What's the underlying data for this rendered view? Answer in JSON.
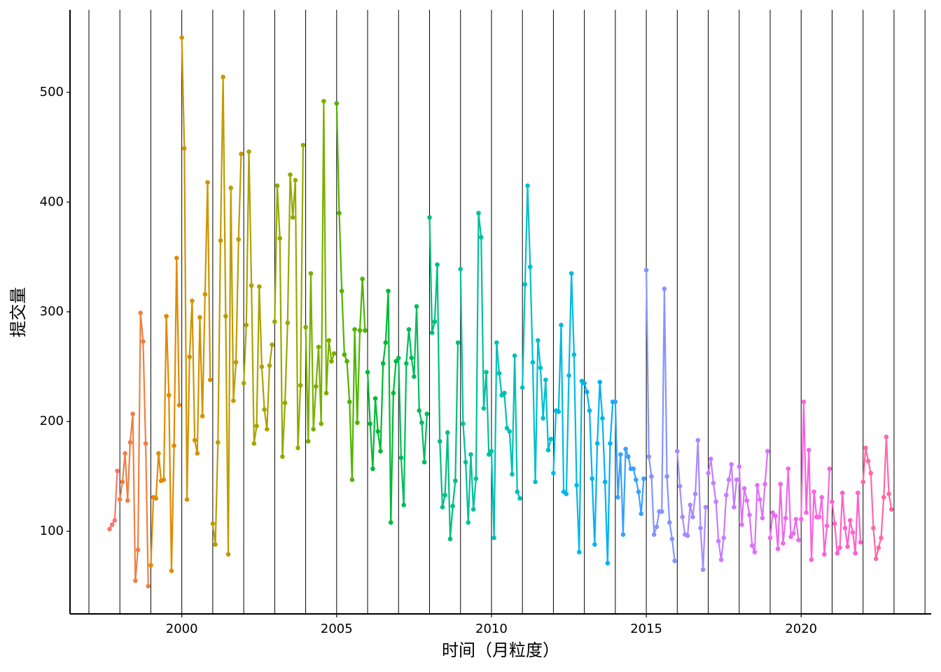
{
  "chart_data": {
    "type": "line",
    "x_label": "时间（月粒度）",
    "y_label": "提交量",
    "xlim": [
      1996.39,
      2024.2
    ],
    "ylim": [
      24.7,
      575.3
    ],
    "xticks": [
      2000,
      2005,
      2010,
      2015,
      2020
    ],
    "yticks": [
      100,
      200,
      300,
      400,
      500
    ],
    "vlines": [
      1997,
      1998,
      1999,
      2000,
      2001,
      2002,
      2003,
      2004,
      2005,
      2006,
      2007,
      2008,
      2009,
      2010,
      2011,
      2012,
      2013,
      2014,
      2015,
      2016,
      2017,
      2018,
      2019,
      2020,
      2021,
      2022,
      2023,
      2024
    ],
    "series": [
      {
        "color": "#F8766D",
        "x": [
          1997.667,
          1997.75,
          1997.833,
          1997.917
        ],
        "values": [
          102,
          106,
          110,
          155
        ]
      },
      {
        "color": "#EE8044",
        "x": [
          1998,
          1998.083,
          1998.167,
          1998.25,
          1998.333,
          1998.417,
          1998.5,
          1998.583,
          1998.667,
          1998.75,
          1998.833,
          1998.917
        ],
        "values": [
          129,
          145,
          171,
          128,
          181,
          207,
          55,
          83,
          299,
          273,
          180,
          50
        ]
      },
      {
        "color": "#E18A00",
        "x": [
          1999,
          1999.083,
          1999.167,
          1999.25,
          1999.333,
          1999.417,
          1999.5,
          1999.583,
          1999.667,
          1999.75,
          1999.833,
          1999.917
        ],
        "values": [
          69,
          131,
          130,
          171,
          146,
          147,
          296,
          224,
          64,
          178,
          349,
          215
        ]
      },
      {
        "color": "#D29300",
        "x": [
          2000,
          2000.083,
          2000.167,
          2000.25,
          2000.333,
          2000.417,
          2000.5,
          2000.583,
          2000.667,
          2000.75,
          2000.833,
          2000.917
        ],
        "values": [
          550,
          449,
          129,
          259,
          310,
          183,
          171,
          295,
          205,
          316,
          418,
          238
        ]
      },
      {
        "color": "#C09B00",
        "x": [
          2001,
          2001.083,
          2001.167,
          2001.25,
          2001.333,
          2001.417,
          2001.5,
          2001.583,
          2001.667,
          2001.75,
          2001.833,
          2001.917
        ],
        "values": [
          107,
          88,
          181,
          365,
          514,
          296,
          79,
          413,
          219,
          254,
          366,
          444
        ]
      },
      {
        "color": "#ABA300",
        "x": [
          2002,
          2002.083,
          2002.167,
          2002.25,
          2002.333,
          2002.417,
          2002.5,
          2002.583,
          2002.667,
          2002.75,
          2002.833,
          2002.917
        ],
        "values": [
          235,
          288,
          446,
          324,
          180,
          196,
          323,
          250,
          211,
          193,
          251,
          270
        ]
      },
      {
        "color": "#94AA00",
        "x": [
          2003,
          2003.083,
          2003.167,
          2003.25,
          2003.333,
          2003.417,
          2003.5,
          2003.583,
          2003.667,
          2003.75,
          2003.833,
          2003.917
        ],
        "values": [
          291,
          415,
          367,
          168,
          217,
          290,
          425,
          386,
          420,
          176,
          233,
          452
        ]
      },
      {
        "color": "#78B000",
        "x": [
          2004,
          2004.083,
          2004.167,
          2004.25,
          2004.333,
          2004.417,
          2004.5,
          2004.583,
          2004.667,
          2004.75,
          2004.833,
          2004.917
        ],
        "values": [
          286,
          182,
          335,
          193,
          232,
          268,
          198,
          492,
          226,
          274,
          255,
          262
        ]
      },
      {
        "color": "#4EB400",
        "x": [
          2005,
          2005.083,
          2005.167,
          2005.25,
          2005.333,
          2005.417,
          2005.5,
          2005.583,
          2005.667,
          2005.75,
          2005.833,
          2005.917
        ],
        "values": [
          490,
          390,
          319,
          261,
          255,
          218,
          147,
          284,
          199,
          283,
          330,
          283
        ]
      },
      {
        "color": "#00B935",
        "x": [
          2006,
          2006.083,
          2006.167,
          2006.25,
          2006.333,
          2006.417,
          2006.5,
          2006.583,
          2006.667,
          2006.75,
          2006.833,
          2006.917
        ],
        "values": [
          245,
          198,
          157,
          221,
          191,
          173,
          253,
          272,
          319,
          108,
          226,
          255
        ]
      },
      {
        "color": "#00BC5A",
        "x": [
          2007,
          2007.083,
          2007.167,
          2007.25,
          2007.333,
          2007.417,
          2007.5,
          2007.583,
          2007.667,
          2007.75,
          2007.833,
          2007.917
        ],
        "values": [
          258,
          167,
          124,
          253,
          284,
          258,
          241,
          305,
          210,
          199,
          163,
          207
        ]
      },
      {
        "color": "#00BE7D",
        "x": [
          2008,
          2008.083,
          2008.167,
          2008.25,
          2008.333,
          2008.417,
          2008.5,
          2008.583,
          2008.667,
          2008.75,
          2008.833,
          2008.917
        ],
        "values": [
          386,
          281,
          291,
          343,
          182,
          122,
          133,
          190,
          93,
          123,
          146,
          272
        ]
      },
      {
        "color": "#00C09B",
        "x": [
          2009,
          2009.083,
          2009.167,
          2009.25,
          2009.333,
          2009.417,
          2009.5,
          2009.583,
          2009.667,
          2009.75,
          2009.833,
          2009.917
        ],
        "values": [
          339,
          198,
          163,
          108,
          170,
          120,
          148,
          390,
          368,
          212,
          245,
          170
        ]
      },
      {
        "color": "#00C0B5",
        "x": [
          2010,
          2010.083,
          2010.167,
          2010.25,
          2010.333,
          2010.417,
          2010.5,
          2010.583,
          2010.667,
          2010.75,
          2010.833,
          2010.917
        ],
        "values": [
          173,
          94,
          272,
          244,
          224,
          226,
          194,
          191,
          152,
          260,
          136,
          130
        ]
      },
      {
        "color": "#00BECD",
        "x": [
          2011,
          2011.083,
          2011.167,
          2011.25,
          2011.333,
          2011.417,
          2011.5,
          2011.583,
          2011.667,
          2011.75,
          2011.833,
          2011.917
        ],
        "values": [
          231,
          325,
          415,
          341,
          254,
          145,
          274,
          249,
          203,
          238,
          174,
          184
        ]
      },
      {
        "color": "#00BAE1",
        "x": [
          2012,
          2012.083,
          2012.167,
          2012.25,
          2012.333,
          2012.417,
          2012.5,
          2012.583,
          2012.667,
          2012.75,
          2012.833,
          2012.917
        ],
        "values": [
          153,
          210,
          209,
          288,
          136,
          134,
          242,
          335,
          261,
          142,
          81,
          237
        ]
      },
      {
        "color": "#00B2F1",
        "x": [
          2013,
          2013.083,
          2013.167,
          2013.25,
          2013.333,
          2013.417,
          2013.5,
          2013.583,
          2013.667,
          2013.75,
          2013.833,
          2013.917
        ],
        "values": [
          235,
          227,
          210,
          148,
          88,
          180,
          236,
          203,
          145,
          71,
          180,
          218
        ]
      },
      {
        "color": "#35A2FF",
        "x": [
          2014,
          2014.083,
          2014.167,
          2014.25,
          2014.333,
          2014.417,
          2014.5,
          2014.583,
          2014.667,
          2014.75,
          2014.833,
          2014.917
        ],
        "values": [
          218,
          131,
          170,
          97,
          175,
          168,
          157,
          157,
          147,
          136,
          116,
          148
        ]
      },
      {
        "color": "#8494FF",
        "x": [
          2015,
          2015.083,
          2015.167,
          2015.25,
          2015.333,
          2015.417,
          2015.5,
          2015.583,
          2015.667,
          2015.75,
          2015.833,
          2015.917
        ],
        "values": [
          338,
          168,
          150,
          97,
          104,
          118,
          118,
          321,
          150,
          108,
          93,
          73
        ]
      },
      {
        "color": "#A989FF",
        "x": [
          2016,
          2016.083,
          2016.167,
          2016.25,
          2016.333,
          2016.417,
          2016.5,
          2016.583,
          2016.667,
          2016.75,
          2016.833,
          2016.917
        ],
        "values": [
          173,
          141,
          113,
          97,
          96,
          124,
          113,
          134,
          183,
          103,
          65,
          122
        ]
      },
      {
        "color": "#C77CFF",
        "x": [
          2017,
          2017.083,
          2017.167,
          2017.25,
          2017.333,
          2017.417,
          2017.5,
          2017.583,
          2017.667,
          2017.75,
          2017.833,
          2017.917
        ],
        "values": [
          153,
          166,
          144,
          127,
          91,
          74,
          94,
          133,
          147,
          161,
          122,
          147
        ]
      },
      {
        "color": "#DC71FA",
        "x": [
          2018,
          2018.083,
          2018.167,
          2018.25,
          2018.333,
          2018.417,
          2018.5,
          2018.583,
          2018.667,
          2018.75,
          2018.833,
          2018.917
        ],
        "values": [
          159,
          106,
          139,
          128,
          115,
          87,
          81,
          142,
          129,
          112,
          143,
          173
        ]
      },
      {
        "color": "#EC69EF",
        "x": [
          2019,
          2019.083,
          2019.167,
          2019.25,
          2019.333,
          2019.417,
          2019.5,
          2019.583,
          2019.667,
          2019.75,
          2019.833,
          2019.917
        ],
        "values": [
          94,
          117,
          114,
          84,
          143,
          89,
          112,
          157,
          95,
          98,
          111,
          92
        ]
      },
      {
        "color": "#F864DF",
        "x": [
          2020,
          2020.083,
          2020.167,
          2020.25,
          2020.333,
          2020.417,
          2020.5,
          2020.583,
          2020.667,
          2020.75,
          2020.833,
          2020.917
        ],
        "values": [
          111,
          218,
          117,
          174,
          74,
          136,
          113,
          113,
          131,
          79,
          105,
          157
        ]
      },
      {
        "color": "#FE61CB",
        "x": [
          2021,
          2021.083,
          2021.167,
          2021.25,
          2021.333,
          2021.417,
          2021.5,
          2021.583,
          2021.667,
          2021.75,
          2021.833,
          2021.917
        ],
        "values": [
          127,
          107,
          80,
          85,
          135,
          103,
          86,
          110,
          99,
          80,
          135,
          90
        ]
      },
      {
        "color": "#FF67A4",
        "x": [
          2022,
          2022.083,
          2022.167,
          2022.25,
          2022.333,
          2022.417,
          2022.5,
          2022.583,
          2022.667,
          2022.75,
          2022.833,
          2022.917
        ],
        "values": [
          145,
          176,
          164,
          153,
          103,
          75,
          85,
          94,
          131,
          186,
          134,
          120
        ]
      }
    ]
  }
}
